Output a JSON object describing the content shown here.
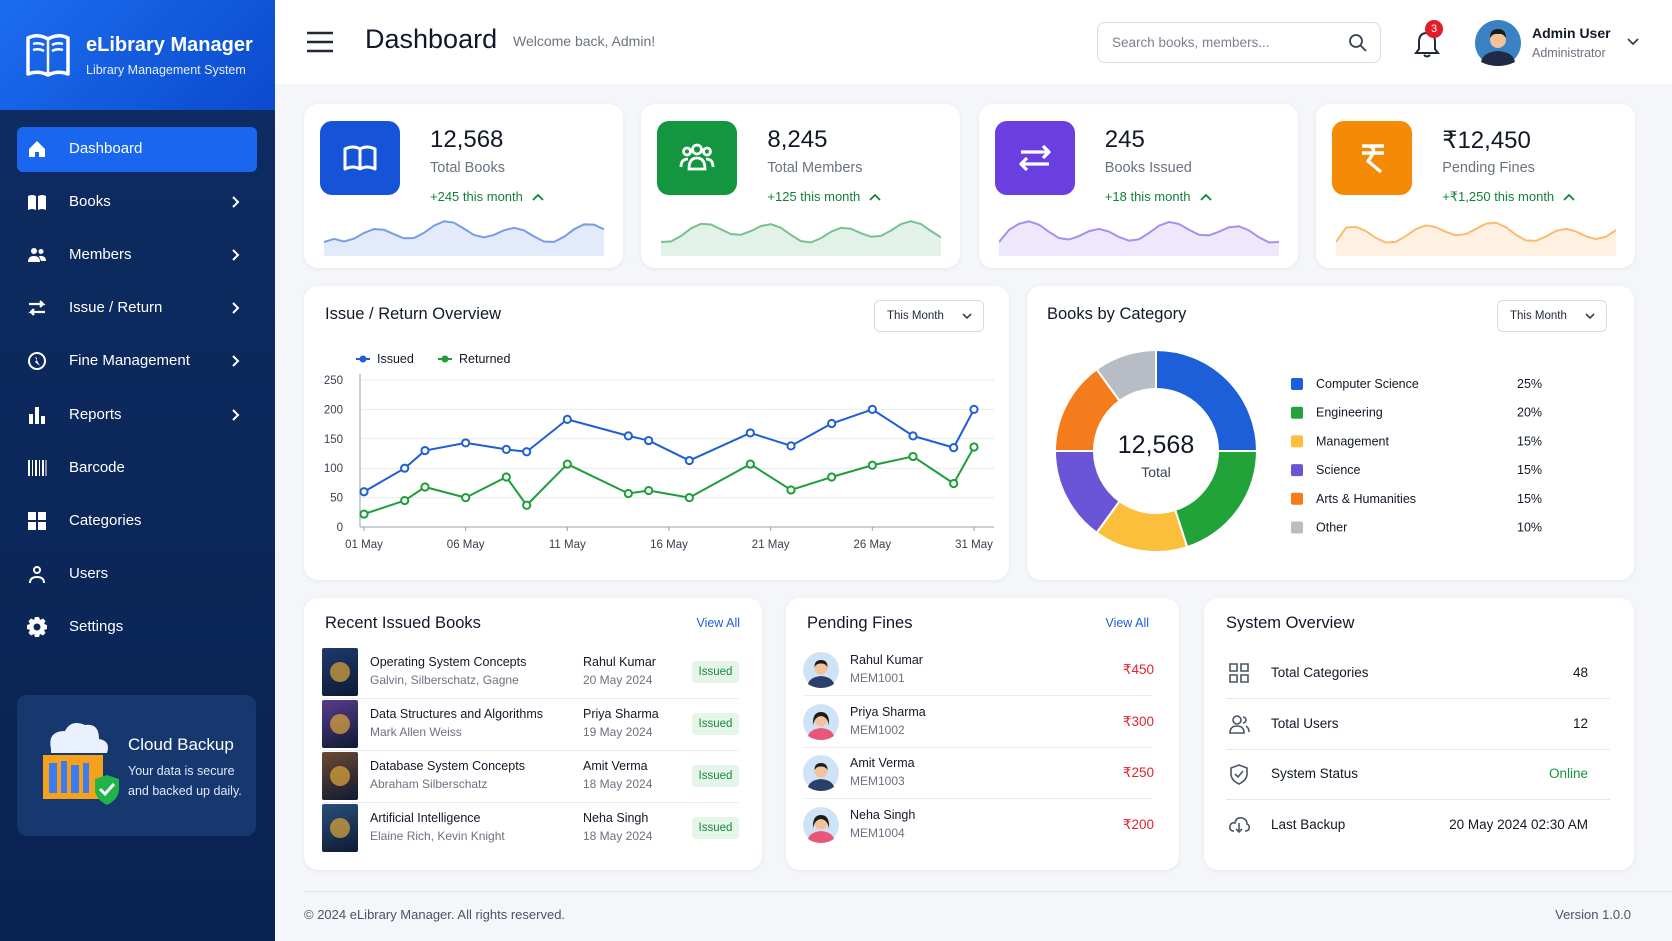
{
  "sidebar": {
    "brand": "eLibrary Manager",
    "tagline": "Library Management System",
    "menu": [
      "Dashboard",
      "Books",
      "Members",
      "Issue / Return",
      "Fine Management",
      "Reports",
      "Barcode",
      "Categories",
      "Users",
      "Settings"
    ],
    "backup": {
      "title": "Cloud Backup",
      "text": "Your data is secure and backed up daily."
    }
  },
  "header": {
    "title": "Dashboard",
    "subtitle": "Welcome back, Admin!",
    "search_placeholder": "Search books, members...",
    "notifications": "3",
    "user_name": "Admin User",
    "user_role": "Administrator"
  },
  "stats": [
    {
      "value": "12,568",
      "label": "Total Books",
      "change": "+245 this month"
    },
    {
      "value": "8,245",
      "label": "Total Members",
      "change": "+125 this month"
    },
    {
      "value": "245",
      "label": "Books Issued",
      "change": "+18 this month"
    },
    {
      "value": "₹12,450",
      "label": "Pending Fines",
      "change": "+₹1,250 this month"
    }
  ],
  "chart_data": [
    {
      "type": "line",
      "title": "Issue / Return Overview",
      "filter": "This Month",
      "x": [
        1,
        3,
        4,
        6,
        8,
        9,
        11,
        14,
        15,
        17,
        20,
        22,
        24,
        26,
        28,
        30,
        31
      ],
      "xlim": [
        1,
        31
      ],
      "xticks": [
        {
          "value": 1,
          "label": "01 May"
        },
        {
          "value": 6,
          "label": "06 May"
        },
        {
          "value": 11,
          "label": "11 May"
        },
        {
          "value": 16,
          "label": "16 May"
        },
        {
          "value": 21,
          "label": "21 May"
        },
        {
          "value": 26,
          "label": "26 May"
        },
        {
          "value": 31,
          "label": "31 May"
        }
      ],
      "ylim": [
        0,
        250
      ],
      "yticks": [
        0,
        50,
        100,
        150,
        200,
        250
      ],
      "grid": true,
      "series": [
        {
          "name": "Issued",
          "color": "#1f5fd6",
          "values": [
            60,
            100,
            130,
            143,
            132,
            128,
            183,
            155,
            147,
            113,
            160,
            138,
            176,
            200,
            155,
            135,
            200
          ]
        },
        {
          "name": "Returned",
          "color": "#1e9e3a",
          "values": [
            22,
            45,
            68,
            50,
            85,
            37,
            107,
            57,
            62,
            50,
            107,
            63,
            85,
            105,
            120,
            74,
            136
          ]
        }
      ]
    },
    {
      "type": "donut",
      "title": "Books by Category",
      "filter": "This Month",
      "categories": [
        "Computer Science",
        "Engineering",
        "Management",
        "Science",
        "Arts & Humanities",
        "Other"
      ],
      "values": [
        25,
        20,
        15,
        15,
        15,
        10
      ],
      "value_labels": [
        "25%",
        "20%",
        "15%",
        "15%",
        "15%",
        "10%"
      ],
      "colors": [
        "#1d5fd8",
        "#22a33a",
        "#fbbf3c",
        "#6a55d6",
        "#f47c1c",
        "#b8bcc4"
      ],
      "center_value": "12,568",
      "center_label": "Total"
    }
  ],
  "recent_books": {
    "title": "Recent Issued Books",
    "view_all": "View All",
    "rows": [
      {
        "title": "Operating System Concepts",
        "authors": "Galvin, Silberschatz, Gagne",
        "member": "Rahul Kumar",
        "date": "20 May 2024",
        "status": "Issued"
      },
      {
        "title": "Data Structures and Algorithms",
        "authors": "Mark Allen Weiss",
        "member": "Priya Sharma",
        "date": "19 May 2024",
        "status": "Issued"
      },
      {
        "title": "Database System Concepts",
        "authors": "Abraham Silberschatz",
        "member": "Amit Verma",
        "date": "18 May 2024",
        "status": "Issued"
      },
      {
        "title": "Artificial Intelligence",
        "authors": "Elaine Rich, Kevin Knight",
        "member": "Neha Singh",
        "date": "18 May 2024",
        "status": "Issued"
      }
    ]
  },
  "pending_fines": {
    "title": "Pending Fines",
    "view_all": "View All",
    "rows": [
      {
        "name": "Rahul Kumar",
        "id": "MEM1001",
        "amount": "₹450"
      },
      {
        "name": "Priya Sharma",
        "id": "MEM1002",
        "amount": "₹300"
      },
      {
        "name": "Amit Verma",
        "id": "MEM1003",
        "amount": "₹250"
      },
      {
        "name": "Neha Singh",
        "id": "MEM1004",
        "amount": "₹200"
      }
    ]
  },
  "system_overview": {
    "title": "System Overview",
    "rows": [
      {
        "label": "Total Categories",
        "value": "48"
      },
      {
        "label": "Total Users",
        "value": "12"
      },
      {
        "label": "System Status",
        "value": "Online"
      },
      {
        "label": "Last Backup",
        "value": "20 May 2024 02:30 AM"
      }
    ]
  },
  "footer": {
    "copyright": "© 2024 eLibrary Manager. All rights reserved.",
    "version": "Version 1.0.0"
  }
}
